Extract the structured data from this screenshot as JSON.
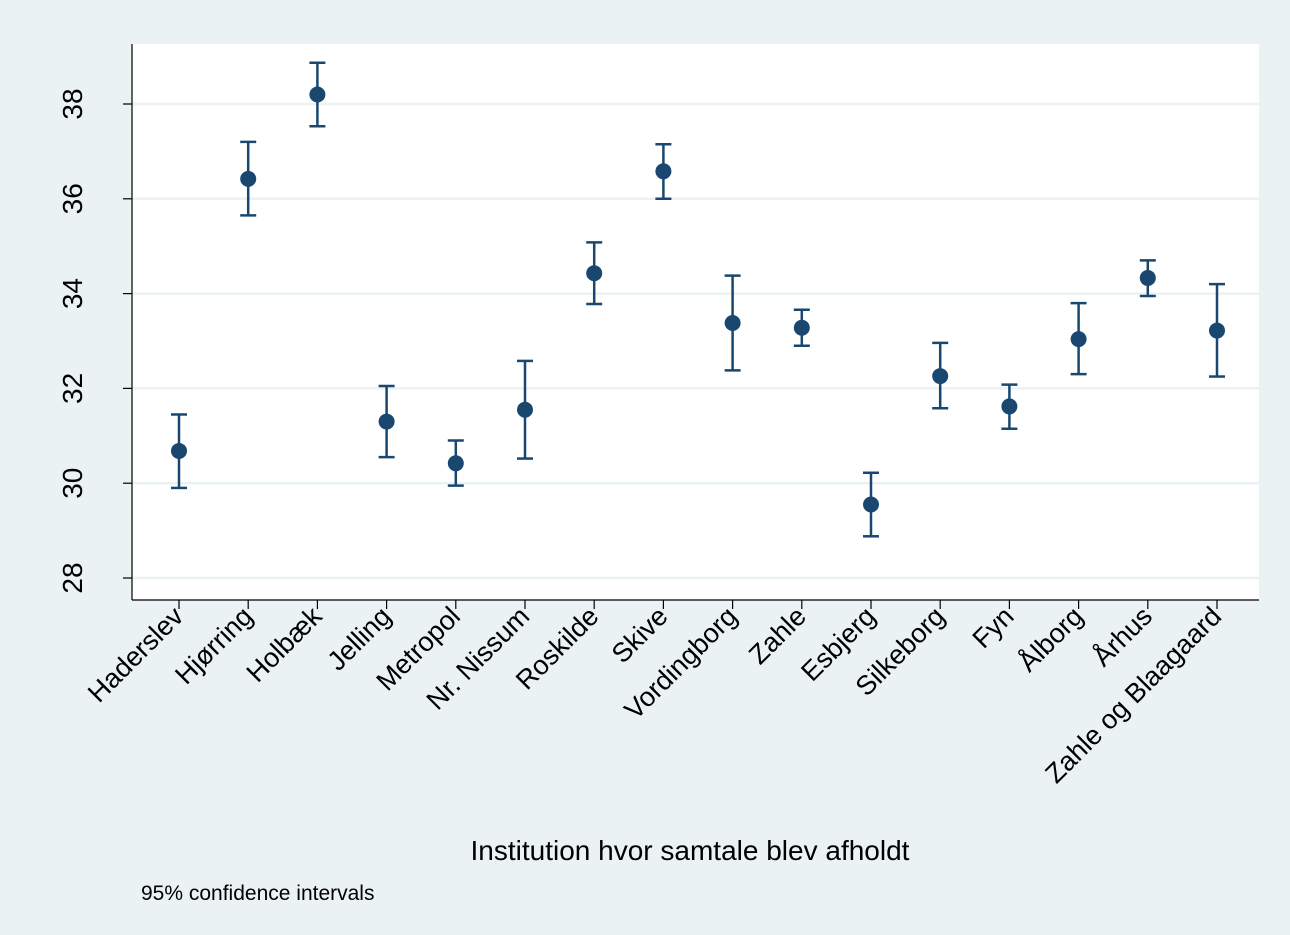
{
  "chart_data": {
    "type": "scatter",
    "subtype": "point-with-error-bars",
    "title": "",
    "xlabel": "Institution hvor samtale blev afholdt",
    "ylabel": "",
    "note": "95% confidence intervals",
    "ylim": [
      27.5,
      39.2
    ],
    "yticks": [
      28,
      30,
      32,
      34,
      36,
      38
    ],
    "grid": true,
    "legend": "none",
    "colors": {
      "marker": "#1a476f",
      "background": "#eaf2f3",
      "plot_bg": "#ffffff",
      "grid": "#eaf2f3"
    },
    "categories": [
      "Haderslev",
      "Hjørring",
      "Holbæk",
      "Jelling",
      "Metropol",
      "Nr. Nissum",
      "Roskilde",
      "Skive",
      "Vordingborg",
      "Zahle",
      "Esbjerg",
      "Silkeborg",
      "Fyn",
      "Ålborg",
      "Århus",
      "Zahle og Blaagaard"
    ],
    "values": [
      30.68,
      36.42,
      38.2,
      31.3,
      30.42,
      31.55,
      34.43,
      36.58,
      33.38,
      33.28,
      29.55,
      32.26,
      31.62,
      33.04,
      34.33,
      33.22
    ],
    "ci_lower": [
      29.9,
      35.65,
      37.53,
      30.55,
      29.95,
      30.52,
      33.78,
      36.0,
      32.38,
      32.9,
      28.88,
      31.58,
      31.15,
      32.3,
      33.95,
      32.25
    ],
    "ci_upper": [
      31.45,
      37.2,
      38.87,
      32.05,
      30.9,
      32.58,
      35.08,
      37.15,
      34.38,
      33.66,
      30.22,
      32.96,
      32.08,
      33.8,
      34.7,
      34.2
    ]
  }
}
